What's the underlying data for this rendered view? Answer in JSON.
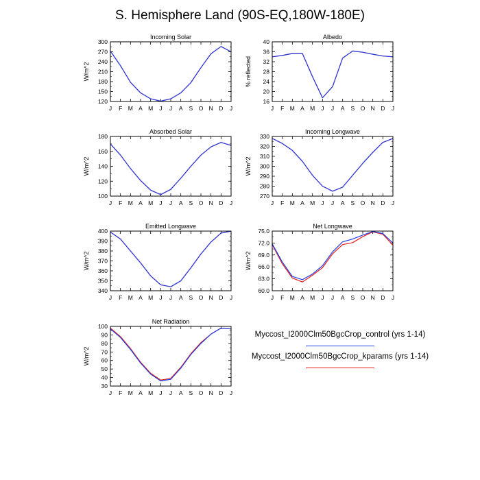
{
  "title": "S. Hemisphere Land (90S-EQ,180W-180E)",
  "legend": [
    {
      "label": "Myccost_I2000Clm50BgcCrop_control (yrs 1-14)",
      "color": "#1f3ee6"
    },
    {
      "label": "Myccost_I2000Clm50BgcCrop_kparams (yrs 1-14)",
      "color": "#e61c1c"
    }
  ],
  "chart_data": [
    {
      "type": "line",
      "title": "Incoming Solar",
      "xlabel": "",
      "ylabel": "W/m^2",
      "categories": [
        "J",
        "F",
        "M",
        "A",
        "M",
        "J",
        "J",
        "A",
        "S",
        "O",
        "N",
        "D",
        "J"
      ],
      "ylim": [
        120,
        300
      ],
      "yticks": [
        120,
        150,
        180,
        210,
        240,
        270,
        300
      ],
      "tick_format": "0",
      "series": [
        {
          "name": "control",
          "values": [
            272,
            228,
            178,
            146,
            128,
            121,
            128,
            146,
            177,
            222,
            264,
            286,
            270
          ]
        },
        {
          "name": "kparams",
          "values": [
            272,
            228,
            178,
            146,
            128,
            121,
            128,
            146,
            177,
            222,
            264,
            286,
            270
          ]
        }
      ]
    },
    {
      "type": "line",
      "title": "Albedo",
      "xlabel": "",
      "ylabel": "% reflected",
      "categories": [
        "J",
        "F",
        "M",
        "A",
        "M",
        "J",
        "J",
        "A",
        "S",
        "O",
        "N",
        "D",
        "J"
      ],
      "ylim": [
        16,
        40
      ],
      "yticks": [
        16,
        20,
        24,
        28,
        32,
        36,
        40
      ],
      "tick_format": "0",
      "series": [
        {
          "name": "control",
          "values": [
            34.0,
            34.5,
            35.3,
            35.3,
            26.0,
            17.5,
            22.0,
            33.5,
            36.3,
            35.8,
            35.0,
            34.3,
            34.0
          ]
        },
        {
          "name": "kparams",
          "values": [
            34.0,
            34.5,
            35.3,
            35.3,
            26.0,
            17.5,
            22.0,
            33.5,
            36.3,
            35.8,
            35.0,
            34.3,
            34.0
          ]
        }
      ]
    },
    {
      "type": "line",
      "title": "Absorbed Solar",
      "xlabel": "",
      "ylabel": "W/m^2",
      "categories": [
        "J",
        "F",
        "M",
        "A",
        "M",
        "J",
        "J",
        "A",
        "S",
        "O",
        "N",
        "D",
        "J"
      ],
      "ylim": [
        100,
        180
      ],
      "yticks": [
        100,
        120,
        140,
        160,
        180
      ],
      "tick_format": "0",
      "series": [
        {
          "name": "control",
          "values": [
            170,
            155,
            137,
            121,
            108,
            102,
            109,
            124,
            140,
            155,
            166,
            172,
            168
          ]
        },
        {
          "name": "kparams",
          "values": [
            170,
            155,
            137,
            121,
            108,
            102,
            109,
            124,
            140,
            155,
            166,
            172,
            168
          ]
        }
      ]
    },
    {
      "type": "line",
      "title": "Incoming Longwave",
      "xlabel": "",
      "ylabel": "W/m^2",
      "categories": [
        "J",
        "F",
        "M",
        "A",
        "M",
        "J",
        "J",
        "A",
        "S",
        "O",
        "N",
        "D",
        "J"
      ],
      "ylim": [
        270,
        330
      ],
      "yticks": [
        270,
        280,
        290,
        300,
        310,
        320,
        330
      ],
      "tick_format": "0",
      "series": [
        {
          "name": "control",
          "values": [
            328,
            323,
            316,
            305,
            291,
            280,
            275,
            279,
            291,
            303,
            314,
            324,
            328
          ]
        },
        {
          "name": "kparams",
          "values": [
            328,
            323,
            316,
            305,
            291,
            280,
            275,
            279,
            291,
            303,
            314,
            324,
            328
          ]
        }
      ]
    },
    {
      "type": "line",
      "title": "Emitted Longwave",
      "xlabel": "",
      "ylabel": "W/m^2",
      "categories": [
        "J",
        "F",
        "M",
        "A",
        "M",
        "J",
        "J",
        "A",
        "S",
        "O",
        "N",
        "D",
        "J"
      ],
      "ylim": [
        340,
        400
      ],
      "yticks": [
        340,
        350,
        360,
        370,
        380,
        390,
        400
      ],
      "tick_format": "0",
      "series": [
        {
          "name": "control",
          "values": [
            399,
            392,
            380,
            368,
            355,
            346,
            344,
            350,
            363,
            377,
            389,
            398,
            400
          ]
        },
        {
          "name": "kparams",
          "values": [
            399,
            392,
            380,
            368,
            355,
            346,
            344,
            350,
            363,
            377,
            389,
            398,
            400
          ]
        }
      ]
    },
    {
      "type": "line",
      "title": "Net Longwave",
      "xlabel": "",
      "ylabel": "W/m^2",
      "categories": [
        "J",
        "F",
        "M",
        "A",
        "M",
        "J",
        "J",
        "A",
        "S",
        "O",
        "N",
        "D",
        "J"
      ],
      "ylim": [
        60,
        75
      ],
      "yticks": [
        60,
        63,
        66,
        69,
        72,
        75
      ],
      "tick_format": "0.0",
      "series": [
        {
          "name": "control",
          "values": [
            71.8,
            67.2,
            63.6,
            62.8,
            64.2,
            66.3,
            69.8,
            72.3,
            73.0,
            74.0,
            74.9,
            74.4,
            72.0
          ]
        },
        {
          "name": "kparams",
          "values": [
            71.6,
            66.8,
            63.2,
            62.2,
            63.9,
            65.8,
            69.3,
            71.6,
            72.1,
            73.6,
            74.8,
            74.2,
            71.5
          ]
        }
      ]
    },
    {
      "type": "line",
      "title": "Net Radiation",
      "xlabel": "",
      "ylabel": "W/m^2",
      "categories": [
        "J",
        "F",
        "M",
        "A",
        "M",
        "J",
        "J",
        "A",
        "S",
        "O",
        "N",
        "D",
        "J"
      ],
      "ylim": [
        30,
        100
      ],
      "yticks": [
        30,
        40,
        50,
        60,
        70,
        80,
        90,
        100
      ],
      "tick_format": "0",
      "series": [
        {
          "name": "control",
          "values": [
            97,
            87,
            73,
            57,
            44,
            36,
            38,
            51,
            67,
            80,
            91,
            98,
            97
          ]
        },
        {
          "name": "kparams",
          "values": [
            98,
            88,
            74,
            58,
            45,
            37,
            39,
            52,
            68,
            81,
            91,
            98,
            97
          ]
        }
      ]
    }
  ]
}
